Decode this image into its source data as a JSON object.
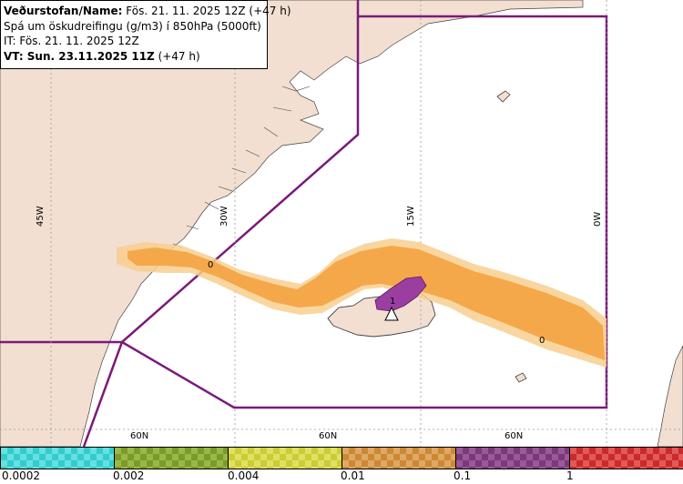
{
  "header": {
    "title_bold": "Veðurstofan/Name:",
    "title_rest": " Fös. 21. 11. 2025 12Z (+47 h)",
    "forecast_desc": "Spá um öskudreifingu (g/m3) í 850hPa (5000ft)",
    "issue_time": "IT: Fös. 21. 11. 2025 12Z",
    "valid_time_bold": "VT: Sun. 23.11.2025 11Z",
    "valid_time_rest": " (+47 h)"
  },
  "grid_labels": {
    "lon_45w": "45W",
    "lon_30w": "30W",
    "lon_15w": "15W",
    "lon_0w": "0W",
    "lat_left": "60N",
    "lat_mid": "60N",
    "lat_right": "60N"
  },
  "map_markers": {
    "west_zero": "0",
    "east_zero": "0",
    "volcano_level": "1"
  },
  "colorbar": {
    "segments": [
      {
        "color": "#33cccc",
        "accent": "#66e0e0"
      },
      {
        "color": "#7a9a2a",
        "accent": "#9ab84a"
      },
      {
        "color": "#cccc33",
        "accent": "#e0e066"
      },
      {
        "color": "#cc8833",
        "accent": "#e0a866"
      },
      {
        "color": "#7a3a7a",
        "accent": "#9a5a9a"
      },
      {
        "color": "#cc2a2a",
        "accent": "#e05a5a"
      }
    ],
    "labels": [
      "0.0002",
      "0.002",
      "0.004",
      "0.01",
      "0.1",
      "1"
    ]
  },
  "colors": {
    "land": "#f2dfd1",
    "sea": "#ffffff",
    "boundary": "#7a1a7a",
    "plume_main": "#f5a84a",
    "plume_light": "#f8cf8f",
    "plume_core": "#9a3fa0"
  }
}
